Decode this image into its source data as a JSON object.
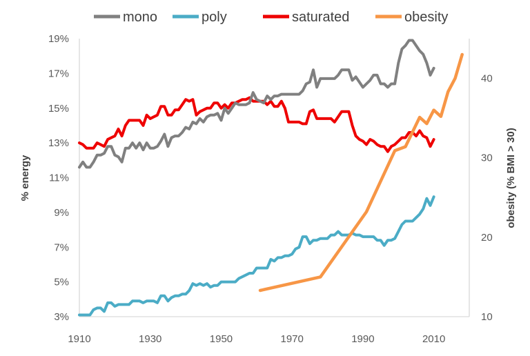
{
  "chart_data": {
    "type": "line",
    "title": "",
    "xlabel": "",
    "ylabel": "% energy",
    "y2label": "obesity (% BMI > 30)",
    "xlim": [
      1910,
      2020
    ],
    "ylim": [
      3,
      19
    ],
    "y2lim": [
      10,
      45
    ],
    "xticks": [
      "1910",
      "1930",
      "1950",
      "1970",
      "1990",
      "2010"
    ],
    "yticks": [
      "3%",
      "5%",
      "7%",
      "9%",
      "11%",
      "13%",
      "15%",
      "17%",
      "19%"
    ],
    "y2ticks": [
      "10",
      "20",
      "30",
      "40"
    ],
    "grid": false,
    "legend_position": "top",
    "series": [
      {
        "name": "mono",
        "axis": "left",
        "color": "#808080",
        "x": [
          1910,
          1911,
          1912,
          1913,
          1914,
          1915,
          1916,
          1917,
          1918,
          1919,
          1920,
          1921,
          1922,
          1923,
          1924,
          1925,
          1926,
          1927,
          1928,
          1929,
          1930,
          1931,
          1932,
          1933,
          1934,
          1935,
          1936,
          1937,
          1938,
          1939,
          1940,
          1941,
          1942,
          1943,
          1944,
          1945,
          1946,
          1947,
          1948,
          1949,
          1950,
          1951,
          1952,
          1953,
          1954,
          1955,
          1956,
          1957,
          1958,
          1959,
          1960,
          1961,
          1962,
          1963,
          1964,
          1965,
          1966,
          1967,
          1968,
          1969,
          1970,
          1971,
          1972,
          1973,
          1974,
          1975,
          1976,
          1977,
          1978,
          1979,
          1980,
          1981,
          1982,
          1983,
          1984,
          1985,
          1986,
          1987,
          1988,
          1989,
          1990,
          1991,
          1992,
          1993,
          1994,
          1995,
          1996,
          1997,
          1998,
          1999,
          2000,
          2001,
          2002,
          2003,
          2004,
          2005,
          2006,
          2007,
          2008,
          2009,
          2010
        ],
        "values": [
          11.6,
          11.9,
          11.6,
          11.6,
          11.9,
          12.3,
          12.3,
          12.4,
          12.8,
          12.8,
          12.3,
          12.2,
          11.9,
          12.7,
          12.7,
          13.0,
          12.7,
          13.0,
          12.6,
          13.0,
          12.7,
          12.7,
          12.8,
          13.1,
          13.5,
          12.8,
          13.3,
          13.4,
          13.4,
          13.6,
          13.9,
          13.8,
          14.2,
          14.1,
          14.4,
          14.2,
          14.5,
          14.6,
          14.6,
          14.7,
          14.3,
          15.0,
          14.7,
          15.0,
          15.3,
          15.2,
          15.2,
          15.2,
          15.3,
          15.9,
          15.5,
          15.4,
          15.3,
          15.7,
          15.5,
          15.7,
          15.7,
          15.8,
          15.8,
          15.8,
          15.8,
          15.8,
          15.8,
          16.0,
          16.4,
          16.5,
          17.2,
          16.2,
          16.7,
          16.7,
          16.7,
          16.7,
          16.7,
          16.9,
          17.2,
          17.2,
          17.2,
          16.6,
          16.8,
          16.5,
          16.2,
          16.4,
          16.6,
          16.9,
          16.9,
          16.4,
          16.4,
          16.2,
          16.4,
          16.4,
          17.6,
          18.4,
          18.6,
          18.9,
          18.9,
          18.6,
          18.3,
          18.1,
          17.6,
          16.9,
          17.3
        ]
      },
      {
        "name": "poly",
        "axis": "left",
        "color": "#4BACC6",
        "x": [
          1910,
          1911,
          1912,
          1913,
          1914,
          1915,
          1916,
          1917,
          1918,
          1919,
          1920,
          1921,
          1922,
          1923,
          1924,
          1925,
          1926,
          1927,
          1928,
          1929,
          1930,
          1931,
          1932,
          1933,
          1934,
          1935,
          1936,
          1937,
          1938,
          1939,
          1940,
          1941,
          1942,
          1943,
          1944,
          1945,
          1946,
          1947,
          1948,
          1949,
          1950,
          1951,
          1952,
          1953,
          1954,
          1955,
          1956,
          1957,
          1958,
          1959,
          1960,
          1961,
          1962,
          1963,
          1964,
          1965,
          1966,
          1967,
          1968,
          1969,
          1970,
          1971,
          1972,
          1973,
          1974,
          1975,
          1976,
          1977,
          1978,
          1979,
          1980,
          1981,
          1982,
          1983,
          1984,
          1985,
          1986,
          1987,
          1988,
          1989,
          1990,
          1991,
          1992,
          1993,
          1994,
          1995,
          1996,
          1997,
          1998,
          1999,
          2000,
          2001,
          2002,
          2003,
          2004,
          2005,
          2006,
          2007,
          2008,
          2009,
          2010
        ],
        "values": [
          3.1,
          3.1,
          3.1,
          3.1,
          3.4,
          3.5,
          3.5,
          3.3,
          3.8,
          3.8,
          3.6,
          3.7,
          3.7,
          3.7,
          3.7,
          3.9,
          3.9,
          3.9,
          3.8,
          3.9,
          3.9,
          3.9,
          3.8,
          4.2,
          4.2,
          3.9,
          4.1,
          4.2,
          4.2,
          4.3,
          4.3,
          4.5,
          4.9,
          4.8,
          4.9,
          4.8,
          4.9,
          4.7,
          4.8,
          4.8,
          5.0,
          5.0,
          5.0,
          5.0,
          5.0,
          5.2,
          5.3,
          5.4,
          5.5,
          5.5,
          5.8,
          5.8,
          5.8,
          5.8,
          6.3,
          6.2,
          6.4,
          6.4,
          6.5,
          6.5,
          6.6,
          6.9,
          7.0,
          7.6,
          7.6,
          7.2,
          7.4,
          7.4,
          7.5,
          7.5,
          7.5,
          7.7,
          7.7,
          7.9,
          7.7,
          7.7,
          7.7,
          7.8,
          7.7,
          7.7,
          7.6,
          7.6,
          7.6,
          7.6,
          7.4,
          7.4,
          7.1,
          7.4,
          7.4,
          7.5,
          7.9,
          8.3,
          8.5,
          8.5,
          8.5,
          8.7,
          8.9,
          9.2,
          9.8,
          9.4,
          9.9
        ]
      },
      {
        "name": "saturated",
        "axis": "left",
        "color": "#EE0000",
        "x": [
          1910,
          1911,
          1912,
          1913,
          1914,
          1915,
          1916,
          1917,
          1918,
          1919,
          1920,
          1921,
          1922,
          1923,
          1924,
          1925,
          1926,
          1927,
          1928,
          1929,
          1930,
          1931,
          1932,
          1933,
          1934,
          1935,
          1936,
          1937,
          1938,
          1939,
          1940,
          1941,
          1942,
          1943,
          1944,
          1945,
          1946,
          1947,
          1948,
          1949,
          1950,
          1951,
          1952,
          1953,
          1954,
          1955,
          1956,
          1957,
          1958,
          1959,
          1960,
          1961,
          1962,
          1963,
          1964,
          1965,
          1966,
          1967,
          1968,
          1969,
          1970,
          1971,
          1972,
          1973,
          1974,
          1975,
          1976,
          1977,
          1978,
          1979,
          1980,
          1981,
          1982,
          1983,
          1984,
          1985,
          1986,
          1987,
          1988,
          1989,
          1990,
          1991,
          1992,
          1993,
          1994,
          1995,
          1996,
          1997,
          1998,
          1999,
          2000,
          2001,
          2002,
          2003,
          2004,
          2005,
          2006,
          2007,
          2008,
          2009,
          2010
        ],
        "values": [
          13.0,
          12.9,
          12.7,
          12.7,
          12.7,
          13.0,
          12.9,
          12.8,
          13.2,
          13.3,
          13.4,
          13.8,
          13.4,
          14.0,
          14.3,
          14.3,
          14.3,
          14.3,
          14.0,
          14.6,
          14.4,
          14.5,
          14.6,
          15.1,
          15.1,
          14.6,
          14.6,
          14.9,
          14.9,
          15.2,
          15.5,
          15.4,
          15.5,
          14.6,
          14.8,
          14.9,
          15.0,
          15.0,
          15.3,
          15.3,
          15.0,
          15.2,
          15.0,
          15.3,
          15.3,
          15.4,
          15.5,
          15.5,
          15.6,
          15.4,
          15.4,
          15.4,
          15.4,
          15.2,
          15.4,
          15.1,
          15.1,
          15.4,
          15.0,
          14.2,
          14.2,
          14.2,
          14.2,
          14.1,
          14.1,
          14.8,
          14.9,
          14.4,
          14.4,
          14.4,
          14.4,
          14.4,
          14.2,
          14.5,
          14.8,
          14.8,
          14.8,
          14.0,
          13.4,
          13.2,
          13.1,
          12.9,
          13.2,
          13.1,
          12.9,
          12.8,
          12.8,
          12.5,
          12.8,
          12.9,
          13.1,
          13.3,
          13.3,
          13.6,
          13.6,
          13.4,
          13.7,
          13.4,
          13.3,
          12.8,
          13.2
        ]
      },
      {
        "name": "obesity",
        "axis": "right",
        "color": "#F79646",
        "x": [
          1961,
          1978,
          1991,
          1999,
          2002,
          2006,
          2008,
          2010,
          2012,
          2014,
          2016,
          2018
        ],
        "values": [
          13.3,
          15.0,
          23.2,
          30.9,
          31.4,
          35.1,
          34.3,
          36.0,
          35.2,
          38.3,
          40.0,
          43.0
        ]
      }
    ]
  }
}
